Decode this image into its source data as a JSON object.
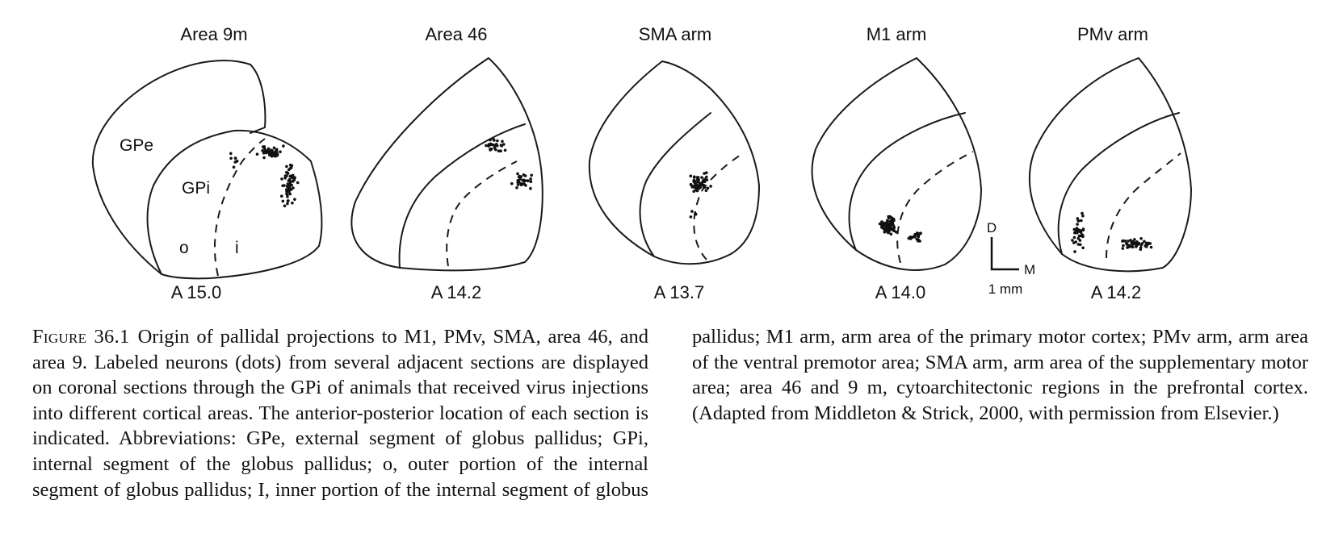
{
  "figure": {
    "panels": [
      {
        "title": "Area 9m",
        "ap_label": "A 15.0",
        "labels": {
          "gpe": "GPe",
          "gpi": "GPi",
          "outer": "o",
          "inner": "i"
        }
      },
      {
        "title": "Area 46",
        "ap_label": "A 14.2"
      },
      {
        "title": "SMA arm",
        "ap_label": "A 13.7"
      },
      {
        "title": "M1 arm",
        "ap_label": "A 14.0"
      },
      {
        "title": "PMv arm",
        "ap_label": "A 14.2"
      }
    ],
    "scale_bar": {
      "dorsal": "D",
      "medial": "M",
      "length": "1 mm"
    }
  },
  "caption": {
    "label": "Figure 36.1",
    "text": "Origin of pallidal projections to M1, PMv, SMA, area 46, and area 9. Labeled neurons (dots) from several adjacent sections are displayed on coronal sections through the GPi of animals that received virus injections into different cortical areas. The anterior-posterior location of each section is indicated. Abbreviations: GPe, external segment of globus pallidus; GPi, internal segment of the globus pallidus; o, outer portion of the internal segment of globus pallidus; I, inner portion of the internal segment of globus pallidus; M1 arm, arm area of the primary motor cortex; PMv arm, arm area of the ventral premotor area; SMA arm, arm area of the supplementary motor area; area 46 and 9 m, cytoarchitectonic regions in the prefrontal cortex. (Adapted from Middleton & Strick, 2000, with permission from Elsevier.)"
  }
}
